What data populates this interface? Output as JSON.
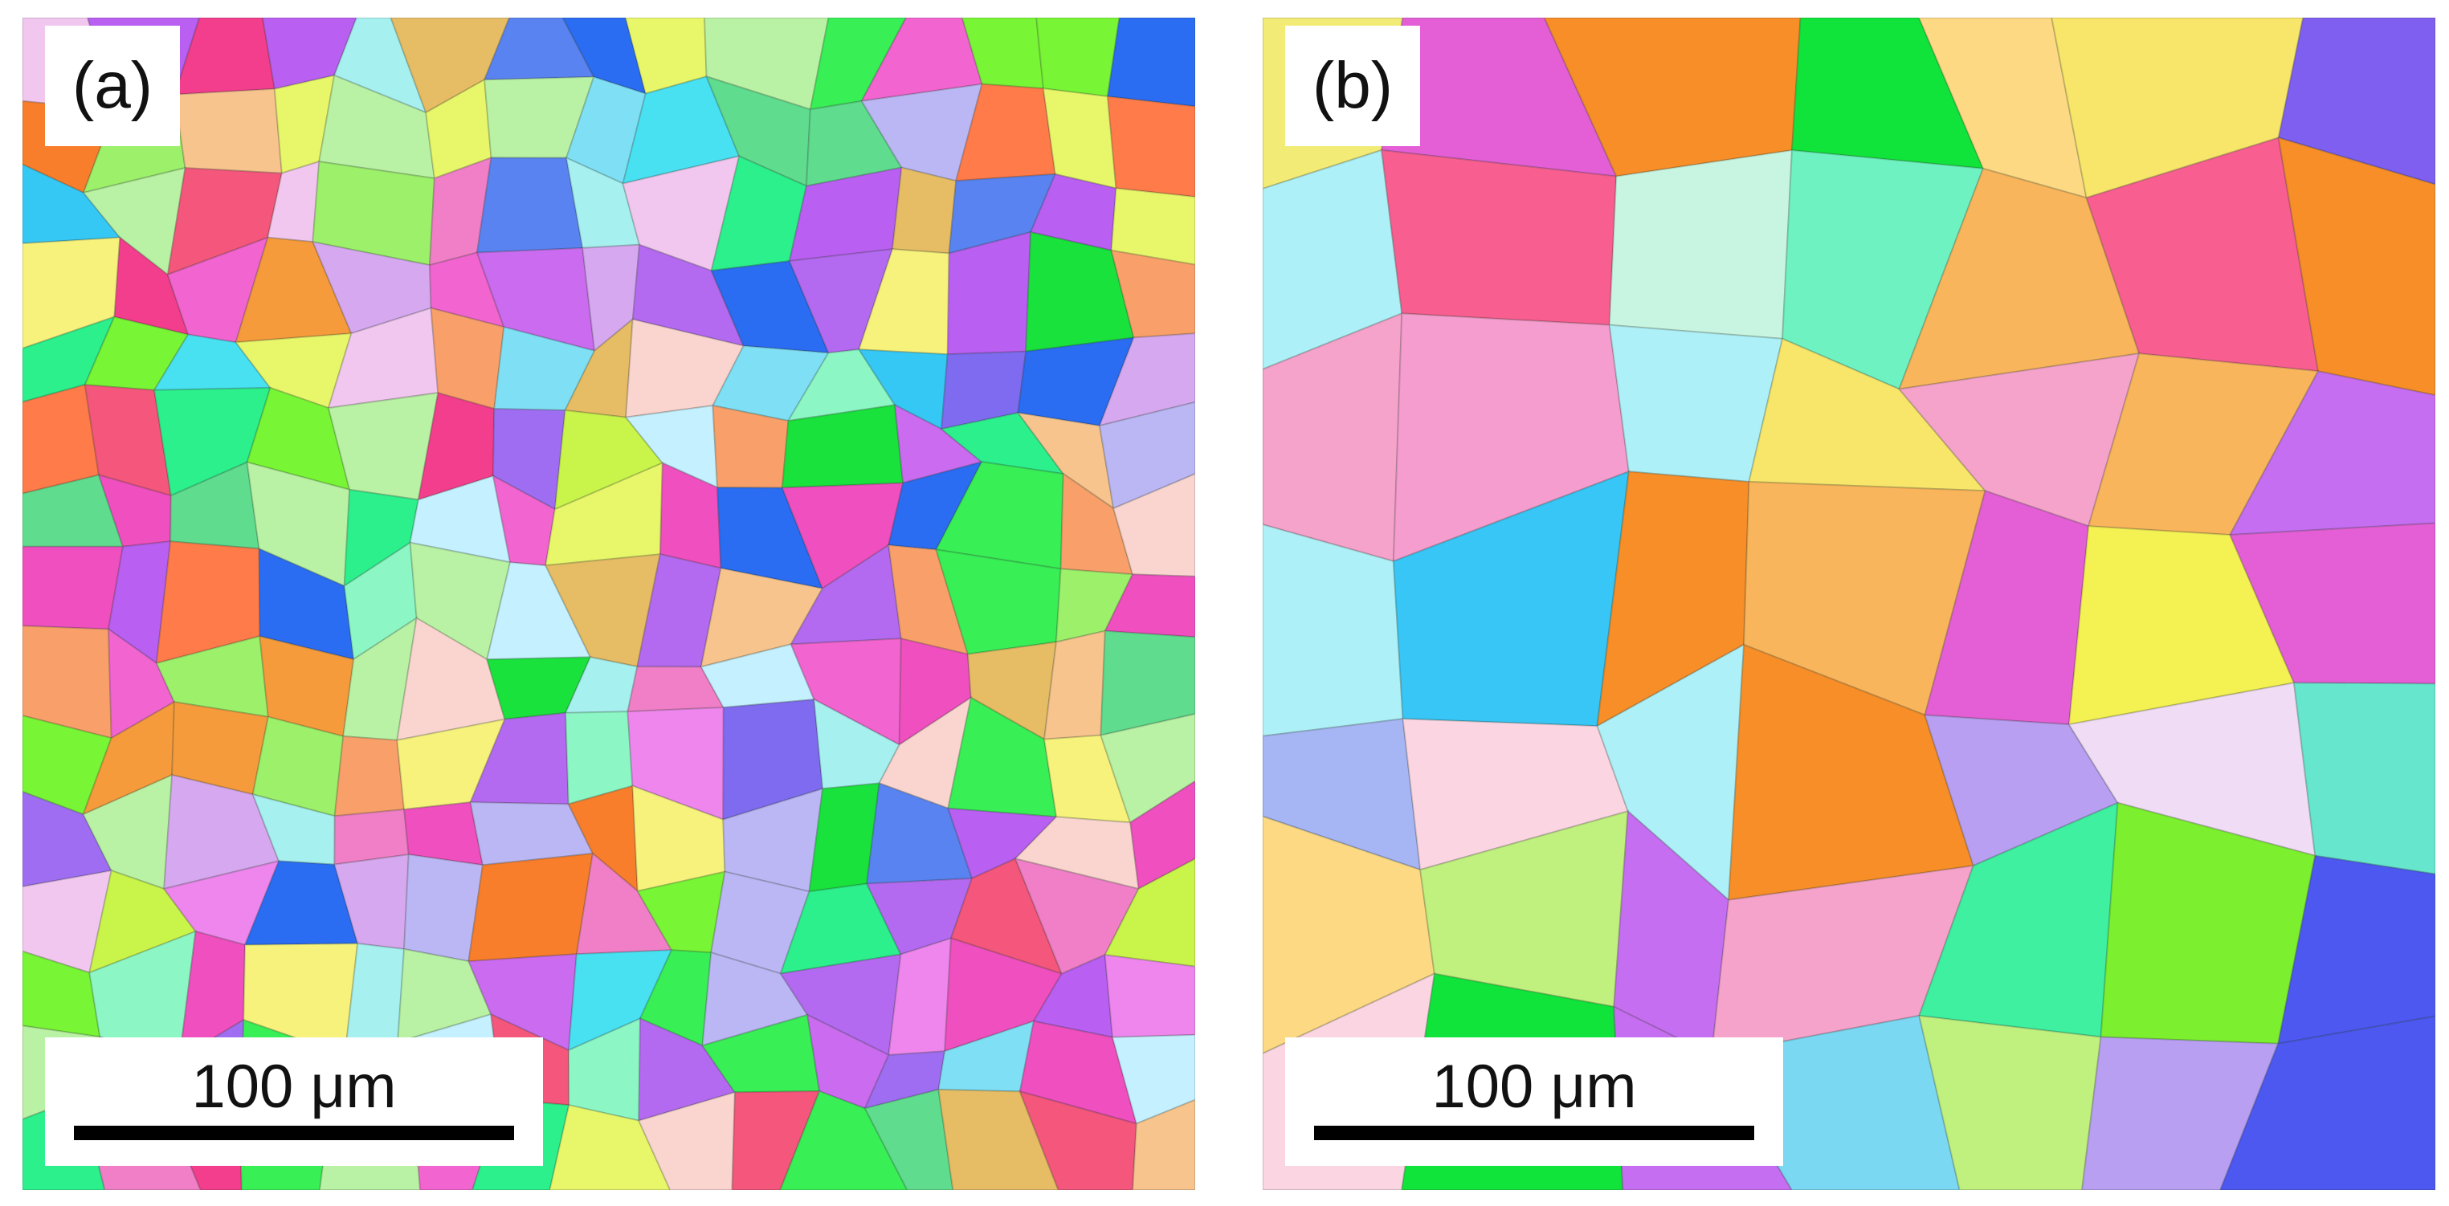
{
  "panels": [
    {
      "label": "(a)",
      "scale_bar": "100 μm",
      "colors": [
        "#19e23c",
        "#38ef56",
        "#2bf08c",
        "#8cf7c5",
        "#b9f2a4",
        "#f264d0",
        "#ee86ee",
        "#f07fc7",
        "#ca6bf0",
        "#b46af0",
        "#9f6df2",
        "#d6a8f0",
        "#f2c7ef",
        "#f4e6f2",
        "#fad5cf",
        "#f6f27c",
        "#e8f76a",
        "#c9f54a",
        "#f59b3b",
        "#f87e2c",
        "#ff7b49",
        "#f9a06a",
        "#f7c48e",
        "#f4567c",
        "#f23e8c",
        "#ef4fbf",
        "#b95ff2",
        "#7e6bf0",
        "#5a83f2",
        "#2a6cf2",
        "#36c8f5",
        "#48e1f2",
        "#7fe0f5",
        "#a6f0f0",
        "#c4f0ff",
        "#9cf06a",
        "#78f535",
        "#5fdc8e",
        "#bbb7f4",
        "#e6bd64"
      ]
    },
    {
      "label": "(b)",
      "scale_bar": "100 μm",
      "colors": [
        "#10e43a",
        "#2cef58",
        "#7cf02e",
        "#3ef0a0",
        "#6ff2c2",
        "#a6f3cf",
        "#c8f5e2",
        "#f484ea",
        "#f6a3cc",
        "#f59dce",
        "#f95e91",
        "#fb5a8d",
        "#e45fd6",
        "#c66ef1",
        "#a96bf2",
        "#7e5ff0",
        "#4c58f0",
        "#2f3de0",
        "#1e68f4",
        "#37c6f5",
        "#7ad8f2",
        "#aef0f7",
        "#f4f153",
        "#f8e66a",
        "#fcd982",
        "#f9b55c",
        "#f59a3b",
        "#f78e28",
        "#fbd6e2",
        "#f7caf0",
        "#f0dcf5",
        "#dcc9f0",
        "#b89ff2",
        "#a6b5f4",
        "#66e6cd",
        "#9bf08e",
        "#c0f07e",
        "#e8f4d0",
        "#f6b0b6",
        "#f2ec77"
      ]
    }
  ]
}
